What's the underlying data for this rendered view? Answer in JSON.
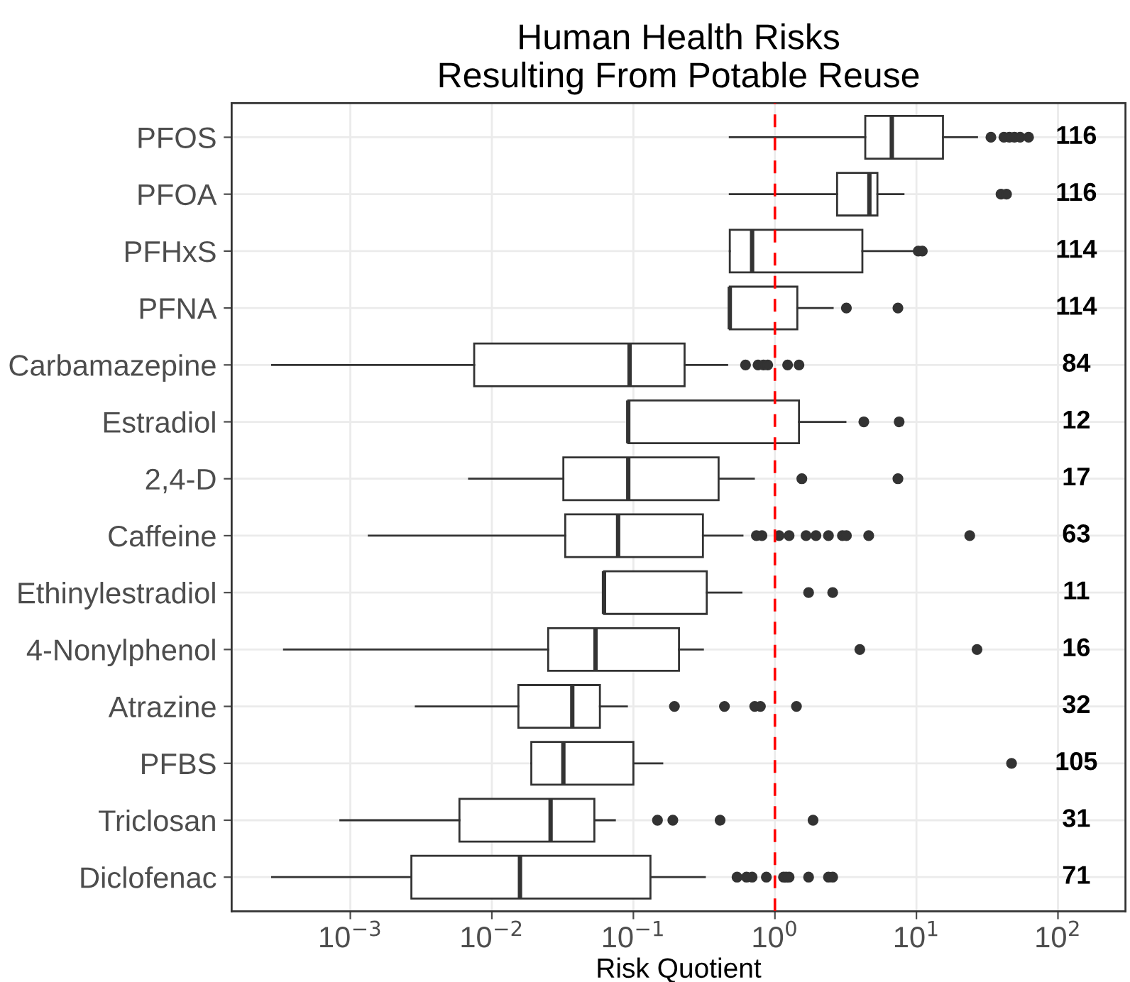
{
  "chart_data": {
    "type": "box",
    "orientation": "horizontal",
    "title": "Human Health Risks\nResulting From Potable Reuse",
    "xlabel": "Risk Quotient",
    "log": "x",
    "grid": true,
    "color": "#333333",
    "categories": [
      "PFOS",
      "PFOA",
      "PFHxS",
      "PFNA",
      "Carbamazepine",
      "Estradiol",
      "2,4-D",
      "Caffeine",
      "Ethinylestradiol",
      "4-Nonylphenol",
      "Atrazine",
      "PFBS",
      "Triclosan",
      "Diclofenac"
    ],
    "boxes": [
      {
        "low": 0.48,
        "q1": 4.35,
        "median": 6.7,
        "q3": 15.4,
        "high": 26.8,
        "outliers": [
          33.6,
          41.5,
          45.4,
          49.3,
          54,
          62
        ]
      },
      {
        "low": 0.48,
        "q1": 2.75,
        "median": 4.65,
        "q3": 5.3,
        "high": 8.1,
        "outliers": [
          39.6,
          43.3
        ]
      },
      {
        "low": 0.48,
        "q1": 0.48,
        "median": 0.69,
        "q3": 4.15,
        "high": 9.5,
        "outliers": [
          10.3,
          11.0
        ]
      },
      {
        "low": 0.48,
        "q1": 0.48,
        "median": 0.48,
        "q3": 1.44,
        "high": 2.56,
        "outliers": [
          3.2,
          7.4
        ]
      },
      {
        "low": 0.00028,
        "q1": 0.0075,
        "median": 0.094,
        "q3": 0.23,
        "high": 0.46,
        "outliers": [
          0.62,
          0.76,
          0.83,
          0.89,
          1.23,
          1.48
        ]
      },
      {
        "low": 0.092,
        "q1": 0.092,
        "median": 0.092,
        "q3": 1.48,
        "high": 3.15,
        "outliers": [
          4.25,
          7.55
        ]
      },
      {
        "low": 0.0069,
        "q1": 0.032,
        "median": 0.092,
        "q3": 0.4,
        "high": 0.71,
        "outliers": [
          1.55,
          7.4
        ]
      },
      {
        "low": 0.00135,
        "q1": 0.033,
        "median": 0.078,
        "q3": 0.31,
        "high": 0.59,
        "outliers": [
          0.74,
          0.81,
          1.07,
          1.26,
          1.66,
          1.95,
          2.39,
          3.0,
          3.2,
          4.6,
          23.8
        ]
      },
      {
        "low": 0.062,
        "q1": 0.062,
        "median": 0.062,
        "q3": 0.33,
        "high": 0.58,
        "outliers": [
          1.73,
          2.56
        ]
      },
      {
        "low": 0.00034,
        "q1": 0.025,
        "median": 0.054,
        "q3": 0.21,
        "high": 0.31,
        "outliers": [
          3.98,
          26.8
        ]
      },
      {
        "low": 0.0029,
        "q1": 0.0154,
        "median": 0.037,
        "q3": 0.058,
        "high": 0.09,
        "outliers": [
          0.195,
          0.44,
          0.72,
          0.79,
          1.42
        ]
      },
      {
        "low": 0.019,
        "q1": 0.019,
        "median": 0.032,
        "q3": 0.1,
        "high": 0.16,
        "outliers": [
          47
        ]
      },
      {
        "low": 0.00085,
        "q1": 0.0059,
        "median": 0.026,
        "q3": 0.053,
        "high": 0.074,
        "outliers": [
          0.148,
          0.19,
          0.41,
          1.86
        ]
      },
      {
        "low": 0.00028,
        "q1": 0.0027,
        "median": 0.0158,
        "q3": 0.132,
        "high": 0.32,
        "outliers": [
          0.54,
          0.63,
          0.69,
          0.87,
          1.15,
          1.2,
          1.26,
          1.73,
          2.39,
          2.56
        ]
      }
    ],
    "xlim": [
      0.000145,
      300
    ],
    "xticks": [
      {
        "value": 0.001,
        "label": "10$^{−3}$"
      },
      {
        "value": 0.01,
        "label": "10$^{−2}$"
      },
      {
        "value": 0.1,
        "label": "10$^{−1}$"
      },
      {
        "value": 1,
        "label": "10$^{0}$"
      },
      {
        "value": 10,
        "label": "10$^{1}$"
      },
      {
        "value": 100,
        "label": "10$^{2}$"
      }
    ],
    "ref_lines": [
      {
        "axis": "x",
        "value": 1,
        "color": "#ff0000",
        "line_style": "dashed"
      }
    ],
    "annotations": [
      "116",
      "116",
      "114",
      "114",
      "84",
      "12",
      "17",
      "63",
      "11",
      "16",
      "32",
      "105",
      "31",
      "71"
    ]
  }
}
